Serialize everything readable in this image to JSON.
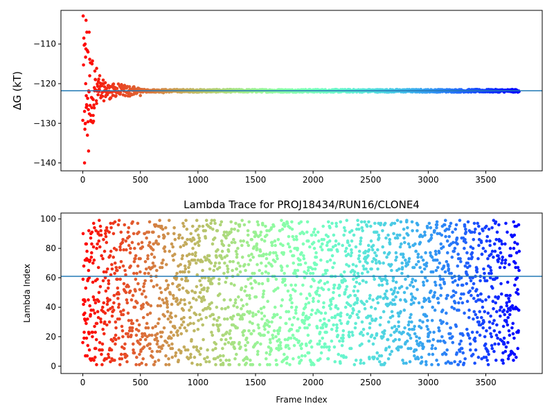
{
  "chart_data": [
    {
      "type": "scatter",
      "title": "",
      "xlabel": "",
      "ylabel": "ΔG (kT)",
      "xlim": [
        -190,
        3990
      ],
      "ylim": [
        -142,
        -101.5
      ],
      "xticks": [
        0,
        500,
        1000,
        1500,
        2000,
        2500,
        3000,
        3500
      ],
      "yticks": [
        -110,
        -120,
        -130,
        -140
      ],
      "hline": {
        "y": -121.8,
        "color": "#1f77b4"
      },
      "grid": false,
      "color_scale": "rainbow_r (color by frame index)",
      "series": [
        {
          "points_summary": "ΔG estimates vs frame; scattered between -140 and -104 for frames < 150, converging to about -122 after frame 500",
          "x": [
            15,
            20,
            22,
            25,
            28,
            30,
            35,
            40,
            45,
            50,
            55,
            60,
            70,
            80,
            90,
            100,
            110,
            120,
            140,
            160,
            180,
            200,
            230,
            260,
            300,
            350,
            400,
            450,
            500,
            550,
            600,
            700,
            800,
            900,
            1000,
            1100,
            1200,
            1400,
            1600,
            1800,
            2000,
            2200,
            2400,
            2600,
            2800,
            3000,
            3200,
            3400,
            3600,
            3780
          ],
          "y": [
            -140,
            -110,
            -130,
            -120,
            -104,
            -126,
            -107,
            -133,
            -112,
            -137,
            -107,
            -118,
            -128,
            -115,
            -124,
            -121,
            -119,
            -125,
            -122,
            -123,
            -120,
            -122,
            -121,
            -123,
            -122,
            -121,
            -122,
            -122.5,
            -123,
            -122,
            -121.7,
            -122.3,
            -121.8,
            -122,
            -121.8,
            -122,
            -121.9,
            -122,
            -121.9,
            -122,
            -122.1,
            -121.9,
            -121.8,
            -121.8,
            -121.9,
            -121.8,
            -121.9,
            -121.9,
            -121.9,
            -121.9
          ]
        }
      ]
    },
    {
      "type": "scatter",
      "title": "Lambda Trace for PROJ18434/RUN16/CLONE4",
      "xlabel": "Frame Index",
      "ylabel": "Lambda Index",
      "xlim": [
        -190,
        3990
      ],
      "ylim": [
        -5,
        104
      ],
      "xticks": [
        0,
        500,
        1000,
        1500,
        2000,
        2500,
        3000,
        3500
      ],
      "yticks": [
        0,
        20,
        40,
        60,
        80,
        100
      ],
      "hline": {
        "y": 61,
        "color": "#1f77b4"
      },
      "grid": false,
      "color_scale": "rainbow_r (color by frame index)",
      "series": [
        {
          "points_summary": "lambda index visited at each frame, uniformly spread over 0–100 for frames 0–3800",
          "frame_range": [
            0,
            3800
          ],
          "lambda_range": [
            0,
            100
          ]
        }
      ]
    }
  ]
}
